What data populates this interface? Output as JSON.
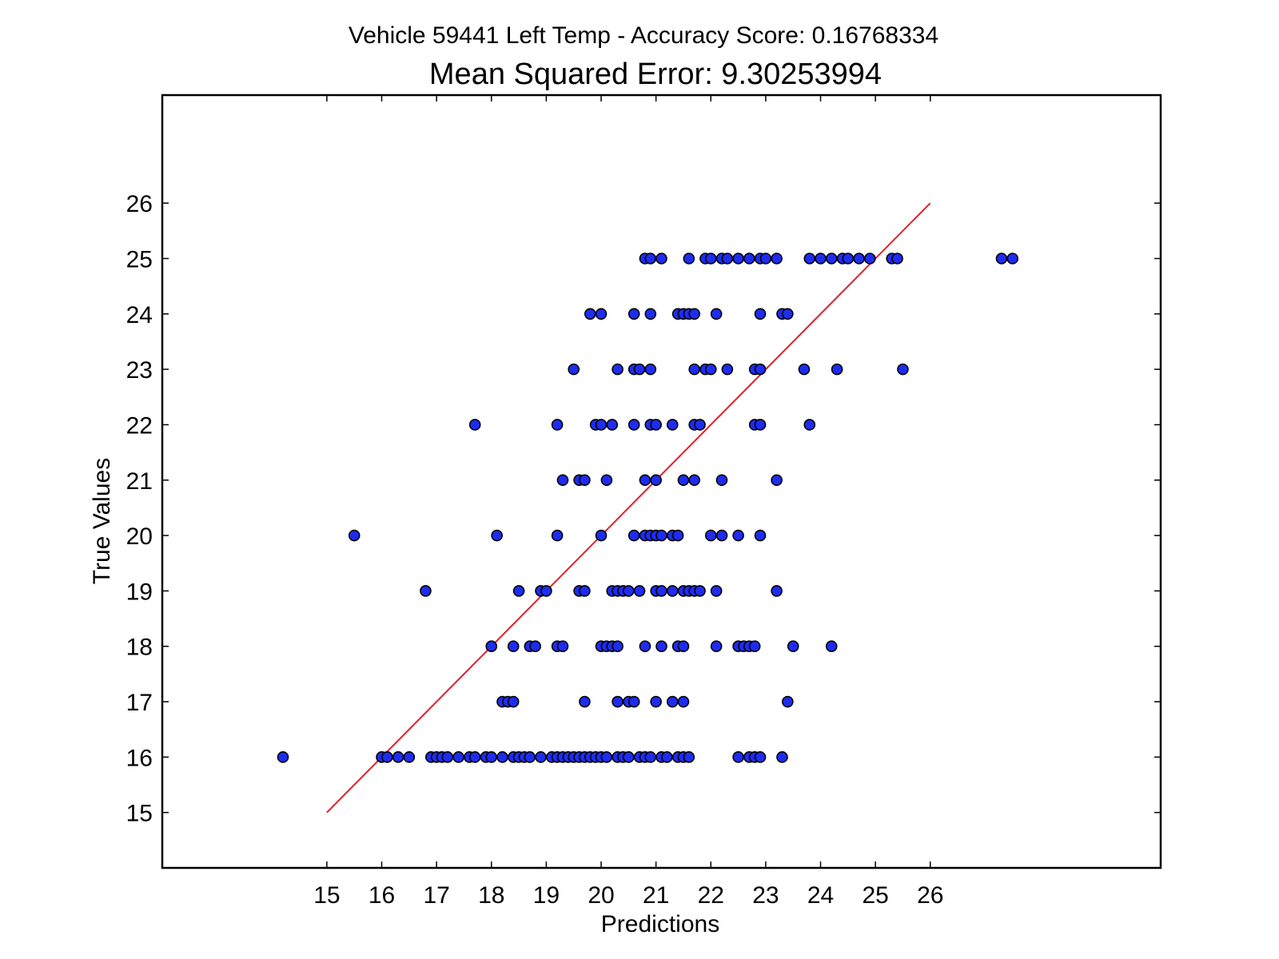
{
  "chart_data": {
    "type": "scatter",
    "title": "Vehicle 59441 Left Temp - Accuracy Score: 0.16768334",
    "subtitle": "Mean Squared Error: 9.30253994",
    "xlabel": "Predictions",
    "ylabel": "True Values",
    "xlim": [
      12,
      30.2
    ],
    "ylim": [
      14,
      27.95
    ],
    "xticks": [
      "15",
      "16",
      "17",
      "18",
      "19",
      "20",
      "21",
      "22",
      "23",
      "24",
      "25",
      "26"
    ],
    "yticks": [
      "15",
      "16",
      "17",
      "18",
      "19",
      "20",
      "21",
      "22",
      "23",
      "24",
      "25",
      "26"
    ],
    "grid": false,
    "reference_line": {
      "x": [
        15,
        26
      ],
      "y": [
        15,
        26
      ],
      "color": "#e0202a"
    },
    "marker_color": "#1e2cf0",
    "marker_edge_color": "#000000",
    "series": [
      {
        "y": 16,
        "x": [
          14.2,
          16.0,
          16.1,
          16.3,
          16.5,
          16.9,
          17.0,
          17.1,
          17.2,
          17.4,
          17.6,
          17.7,
          17.9,
          18.0,
          18.2,
          18.4,
          18.5,
          18.6,
          18.7,
          18.9,
          19.1,
          19.2,
          19.3,
          19.4,
          19.5,
          19.6,
          19.7,
          19.8,
          19.9,
          20.0,
          20.1,
          20.3,
          20.4,
          20.5,
          20.7,
          20.8,
          20.9,
          21.1,
          21.2,
          21.4,
          21.5,
          21.6,
          22.5,
          22.7,
          22.8,
          22.9,
          23.3
        ]
      },
      {
        "y": 17,
        "x": [
          18.2,
          18.3,
          18.4,
          19.7,
          20.3,
          20.5,
          20.6,
          21.0,
          21.3,
          21.5,
          23.4
        ]
      },
      {
        "y": 18,
        "x": [
          18.0,
          18.4,
          18.7,
          18.8,
          19.2,
          19.3,
          20.0,
          20.1,
          20.2,
          20.3,
          20.8,
          21.1,
          21.4,
          21.5,
          22.1,
          22.5,
          22.6,
          22.7,
          22.8,
          23.5,
          24.2
        ]
      },
      {
        "y": 19,
        "x": [
          16.8,
          18.5,
          18.9,
          19.0,
          19.6,
          19.7,
          20.2,
          20.3,
          20.4,
          20.5,
          20.7,
          21.0,
          21.1,
          21.3,
          21.5,
          21.6,
          21.7,
          21.8,
          22.1,
          23.2
        ]
      },
      {
        "y": 20,
        "x": [
          15.5,
          18.1,
          19.2,
          20.0,
          20.6,
          20.8,
          20.9,
          21.0,
          21.1,
          21.3,
          21.4,
          22.0,
          22.2,
          22.5,
          22.9
        ]
      },
      {
        "y": 21,
        "x": [
          19.3,
          19.6,
          19.7,
          20.1,
          20.8,
          21.0,
          21.5,
          21.7,
          22.2,
          23.2
        ]
      },
      {
        "y": 22,
        "x": [
          17.7,
          19.2,
          19.9,
          20.0,
          20.2,
          20.6,
          20.9,
          21.0,
          21.3,
          21.7,
          21.8,
          22.8,
          22.9,
          23.8
        ]
      },
      {
        "y": 23,
        "x": [
          19.5,
          20.3,
          20.6,
          20.7,
          20.9,
          21.7,
          21.9,
          22.0,
          22.3,
          22.8,
          22.9,
          23.7,
          24.3,
          25.5
        ]
      },
      {
        "y": 24,
        "x": [
          19.8,
          20.0,
          20.6,
          20.9,
          21.4,
          21.5,
          21.6,
          21.7,
          22.1,
          22.9,
          23.3,
          23.4
        ]
      },
      {
        "y": 25,
        "x": [
          20.8,
          20.9,
          21.1,
          21.6,
          21.9,
          22.0,
          22.2,
          22.3,
          22.5,
          22.7,
          22.9,
          23.0,
          23.2,
          23.8,
          24.0,
          24.2,
          24.4,
          24.5,
          24.7,
          24.9,
          25.3,
          25.4,
          27.3,
          27.5
        ]
      }
    ]
  }
}
